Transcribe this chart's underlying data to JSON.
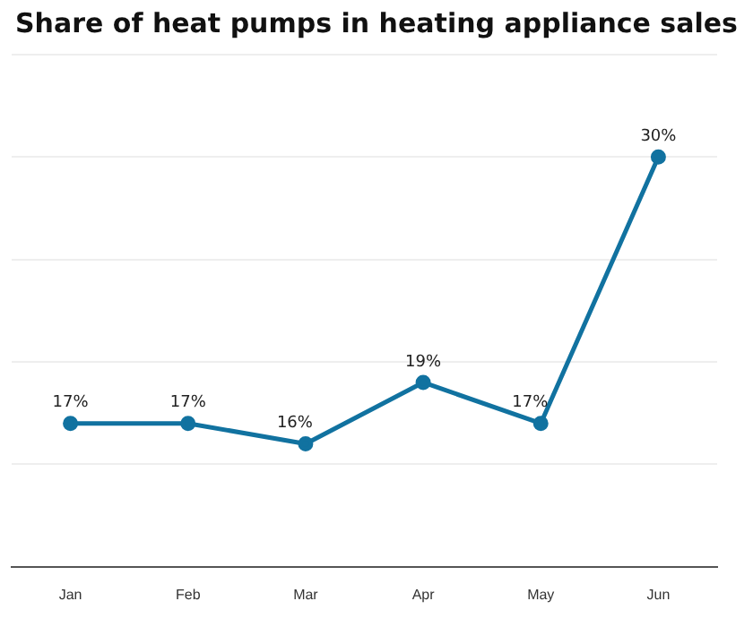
{
  "chart_data": {
    "type": "line",
    "title": "Share of heat pumps in heating appliance sales",
    "categories": [
      "Jan",
      "Feb",
      "Mar",
      "Apr",
      "May",
      "Jun"
    ],
    "series": [
      {
        "color": "#1172a0",
        "values": [
          17,
          17,
          16,
          19,
          17,
          30
        ],
        "value_labels": [
          "17%",
          "17%",
          "16%",
          "19%",
          "17%",
          "30%"
        ]
      }
    ],
    "ylim": [
      10,
      35
    ],
    "yticks": [
      10,
      15,
      20,
      25,
      30,
      35
    ],
    "grid": "y",
    "tick_labels": "x",
    "legend": false,
    "marker": "circle",
    "line_style": "solid"
  }
}
